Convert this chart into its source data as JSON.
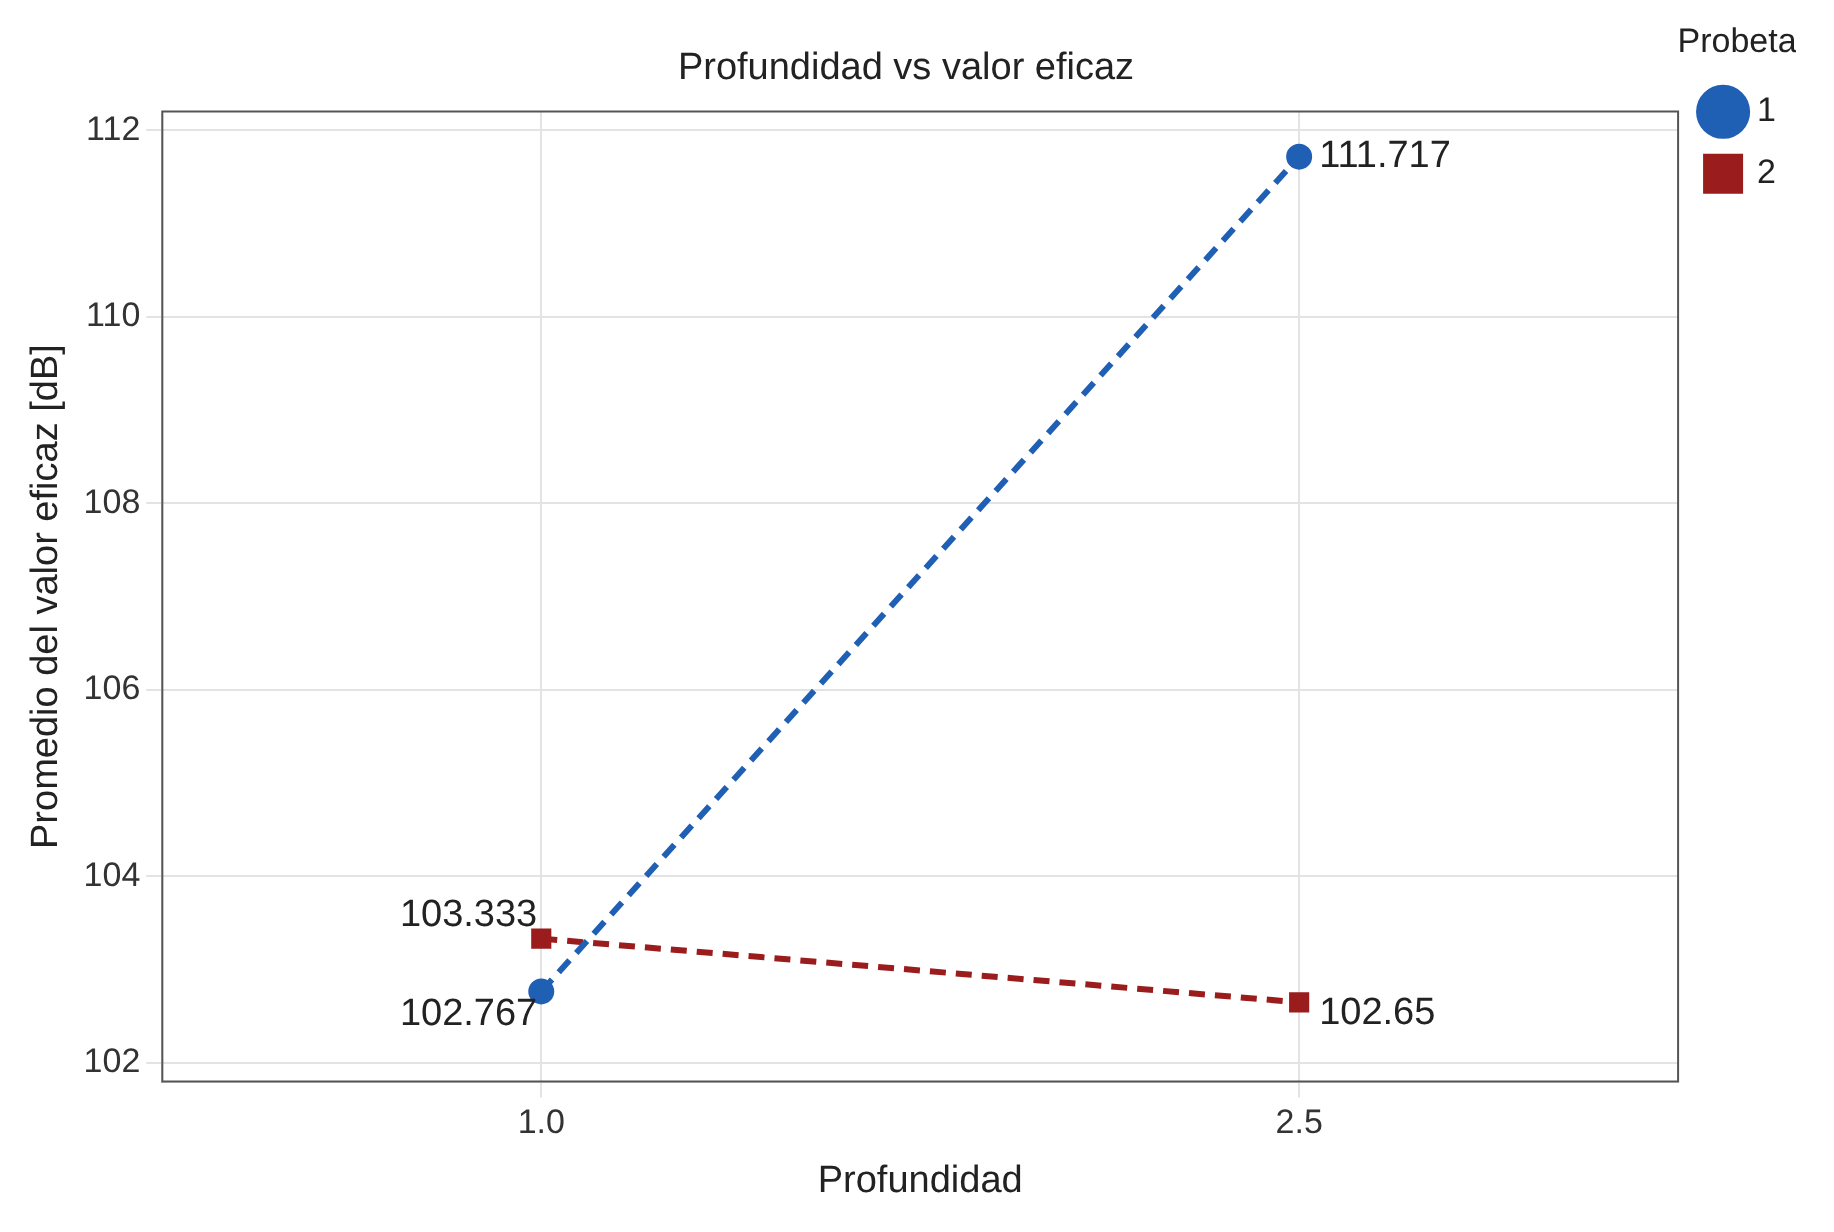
{
  "chart_data": {
    "type": "line",
    "title": "Profundidad vs valor eficaz",
    "xlabel": "Profundidad",
    "ylabel": "Promedio del valor eficaz [dB]",
    "legend_title": "Probeta",
    "x": [
      1,
      2.5
    ],
    "series": [
      {
        "name": "1",
        "color": "#1f5fb4",
        "values": [
          102.767,
          111.717
        ],
        "marker": "circle"
      },
      {
        "name": "2",
        "color": "#9b1c1c",
        "values": [
          103.333,
          102.65
        ],
        "marker": "square"
      }
    ],
    "xlim": [
      0.25,
      3.25
    ],
    "xticks": [
      {
        "value": 1,
        "label": "1.0"
      },
      {
        "value": 2.5,
        "label": "2.5"
      }
    ],
    "ylim": [
      101.8,
      112.2
    ],
    "yticks": [
      102,
      104,
      106,
      108,
      110,
      112
    ],
    "grid": true,
    "legend": "right",
    "line_style": "dashed",
    "data_labels": true
  }
}
